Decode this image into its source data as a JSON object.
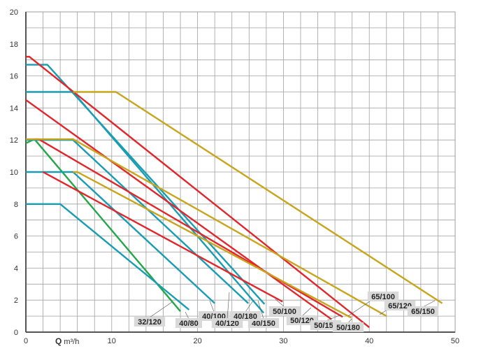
{
  "chart_data": {
    "type": "line",
    "title": "",
    "xlabel": "Q",
    "xlabel_unit": "m³/h",
    "ylabel": "",
    "xlim": [
      0,
      50
    ],
    "ylim": [
      0,
      20
    ],
    "xticks": [
      0,
      10,
      20,
      30,
      40,
      50
    ],
    "yticks": [
      0,
      2,
      4,
      6,
      8,
      10,
      12,
      14,
      16,
      18,
      20
    ],
    "grid": true,
    "colors": {
      "teal": "#1a9db3",
      "red": "#e1262c",
      "yellow": "#c8a51c",
      "green": "#22a84a"
    },
    "series": [
      {
        "name": "32/120",
        "color": "green",
        "points": [
          [
            0,
            11.8
          ],
          [
            1,
            12.05
          ],
          [
            18,
            1.3
          ]
        ]
      },
      {
        "name": "40/80",
        "color": "teal",
        "points": [
          [
            0,
            8
          ],
          [
            4,
            8
          ],
          [
            19,
            1.4
          ]
        ]
      },
      {
        "name": "40/100",
        "color": "teal",
        "points": [
          [
            0,
            10
          ],
          [
            5.5,
            10
          ],
          [
            22,
            1.8
          ]
        ]
      },
      {
        "name": "40/120",
        "color": "teal",
        "points": [
          [
            0,
            12
          ],
          [
            5.5,
            12
          ],
          [
            25.9,
            1.8
          ]
        ]
      },
      {
        "name": "40/150",
        "color": "teal",
        "points": [
          [
            0,
            15
          ],
          [
            5.5,
            15
          ],
          [
            27.7,
            1.2
          ]
        ]
      },
      {
        "name": "40/180",
        "color": "teal",
        "points": [
          [
            0,
            16.7
          ],
          [
            2.5,
            16.7
          ],
          [
            27.8,
            1.75
          ]
        ]
      },
      {
        "name": "50/100",
        "color": "red",
        "points": [
          [
            2,
            10
          ],
          [
            29.9,
            1.9
          ]
        ]
      },
      {
        "name": "50/120",
        "color": "red",
        "points": [
          [
            0,
            14.5
          ],
          [
            35.6,
            0.8
          ]
        ]
      },
      {
        "name": "50/150",
        "color": "red",
        "points": [
          [
            1,
            12.05
          ],
          [
            1.5,
            12.05
          ],
          [
            36.9,
            0.95
          ]
        ]
      },
      {
        "name": "50/180",
        "color": "red",
        "points": [
          [
            0,
            17.2
          ],
          [
            0.4,
            17.2
          ],
          [
            40,
            0.3
          ]
        ]
      },
      {
        "name": "65/100",
        "color": "yellow",
        "points": [
          [
            5.5,
            10
          ],
          [
            6,
            10
          ],
          [
            37.9,
            0.9
          ]
        ]
      },
      {
        "name": "65/120",
        "color": "yellow",
        "points": [
          [
            0,
            12.05
          ],
          [
            5.5,
            12.05
          ],
          [
            42,
            1.0
          ]
        ]
      },
      {
        "name": "65/150",
        "color": "yellow",
        "points": [
          [
            5.5,
            15
          ],
          [
            10.5,
            15
          ],
          [
            48.5,
            1.8
          ]
        ]
      }
    ]
  }
}
